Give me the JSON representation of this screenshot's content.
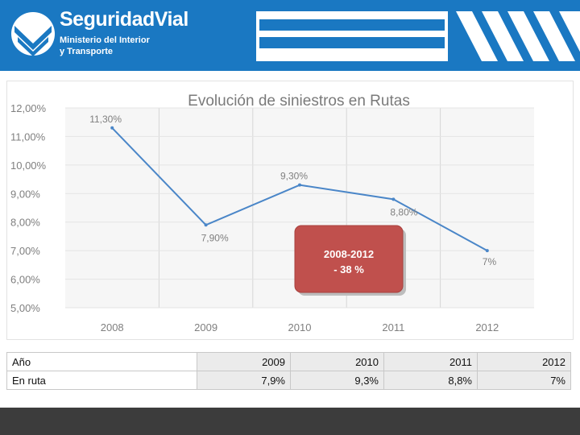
{
  "header": {
    "brand": "SeguridadVial",
    "ministry_line1": "Ministerio del Interior",
    "ministry_line2": "y Transporte"
  },
  "colors": {
    "header_blue": "#1a78c2",
    "line": "#4a86c8",
    "callout": "#c0504d",
    "footer": "#3c3c3c"
  },
  "chart_data": {
    "type": "line",
    "title": "Evolución de siniestros en Rutas",
    "categories": [
      "2008",
      "2009",
      "2010",
      "2011",
      "2012"
    ],
    "series": [
      {
        "name": "En ruta",
        "values": [
          11.3,
          7.9,
          9.3,
          8.8,
          7.0
        ]
      }
    ],
    "data_labels": [
      "11,30%",
      "7,90%",
      "9,30%",
      "8,80%",
      "7%"
    ],
    "y_ticks": [
      "12,00%",
      "11,00%",
      "10,00%",
      "9,00%",
      "8,00%",
      "7,00%",
      "6,00%",
      "5,00%"
    ],
    "ylim": [
      5,
      12
    ],
    "grid": true,
    "callout": {
      "line1": "2008-2012",
      "line2": "- 38 %"
    }
  },
  "table": {
    "rows": [
      {
        "label": "Año",
        "cells": [
          "2009",
          "2010",
          "2011",
          "2012"
        ]
      },
      {
        "label": "En ruta",
        "cells": [
          "7,9%",
          "9,3%",
          "8,8%",
          "7%"
        ]
      }
    ]
  }
}
